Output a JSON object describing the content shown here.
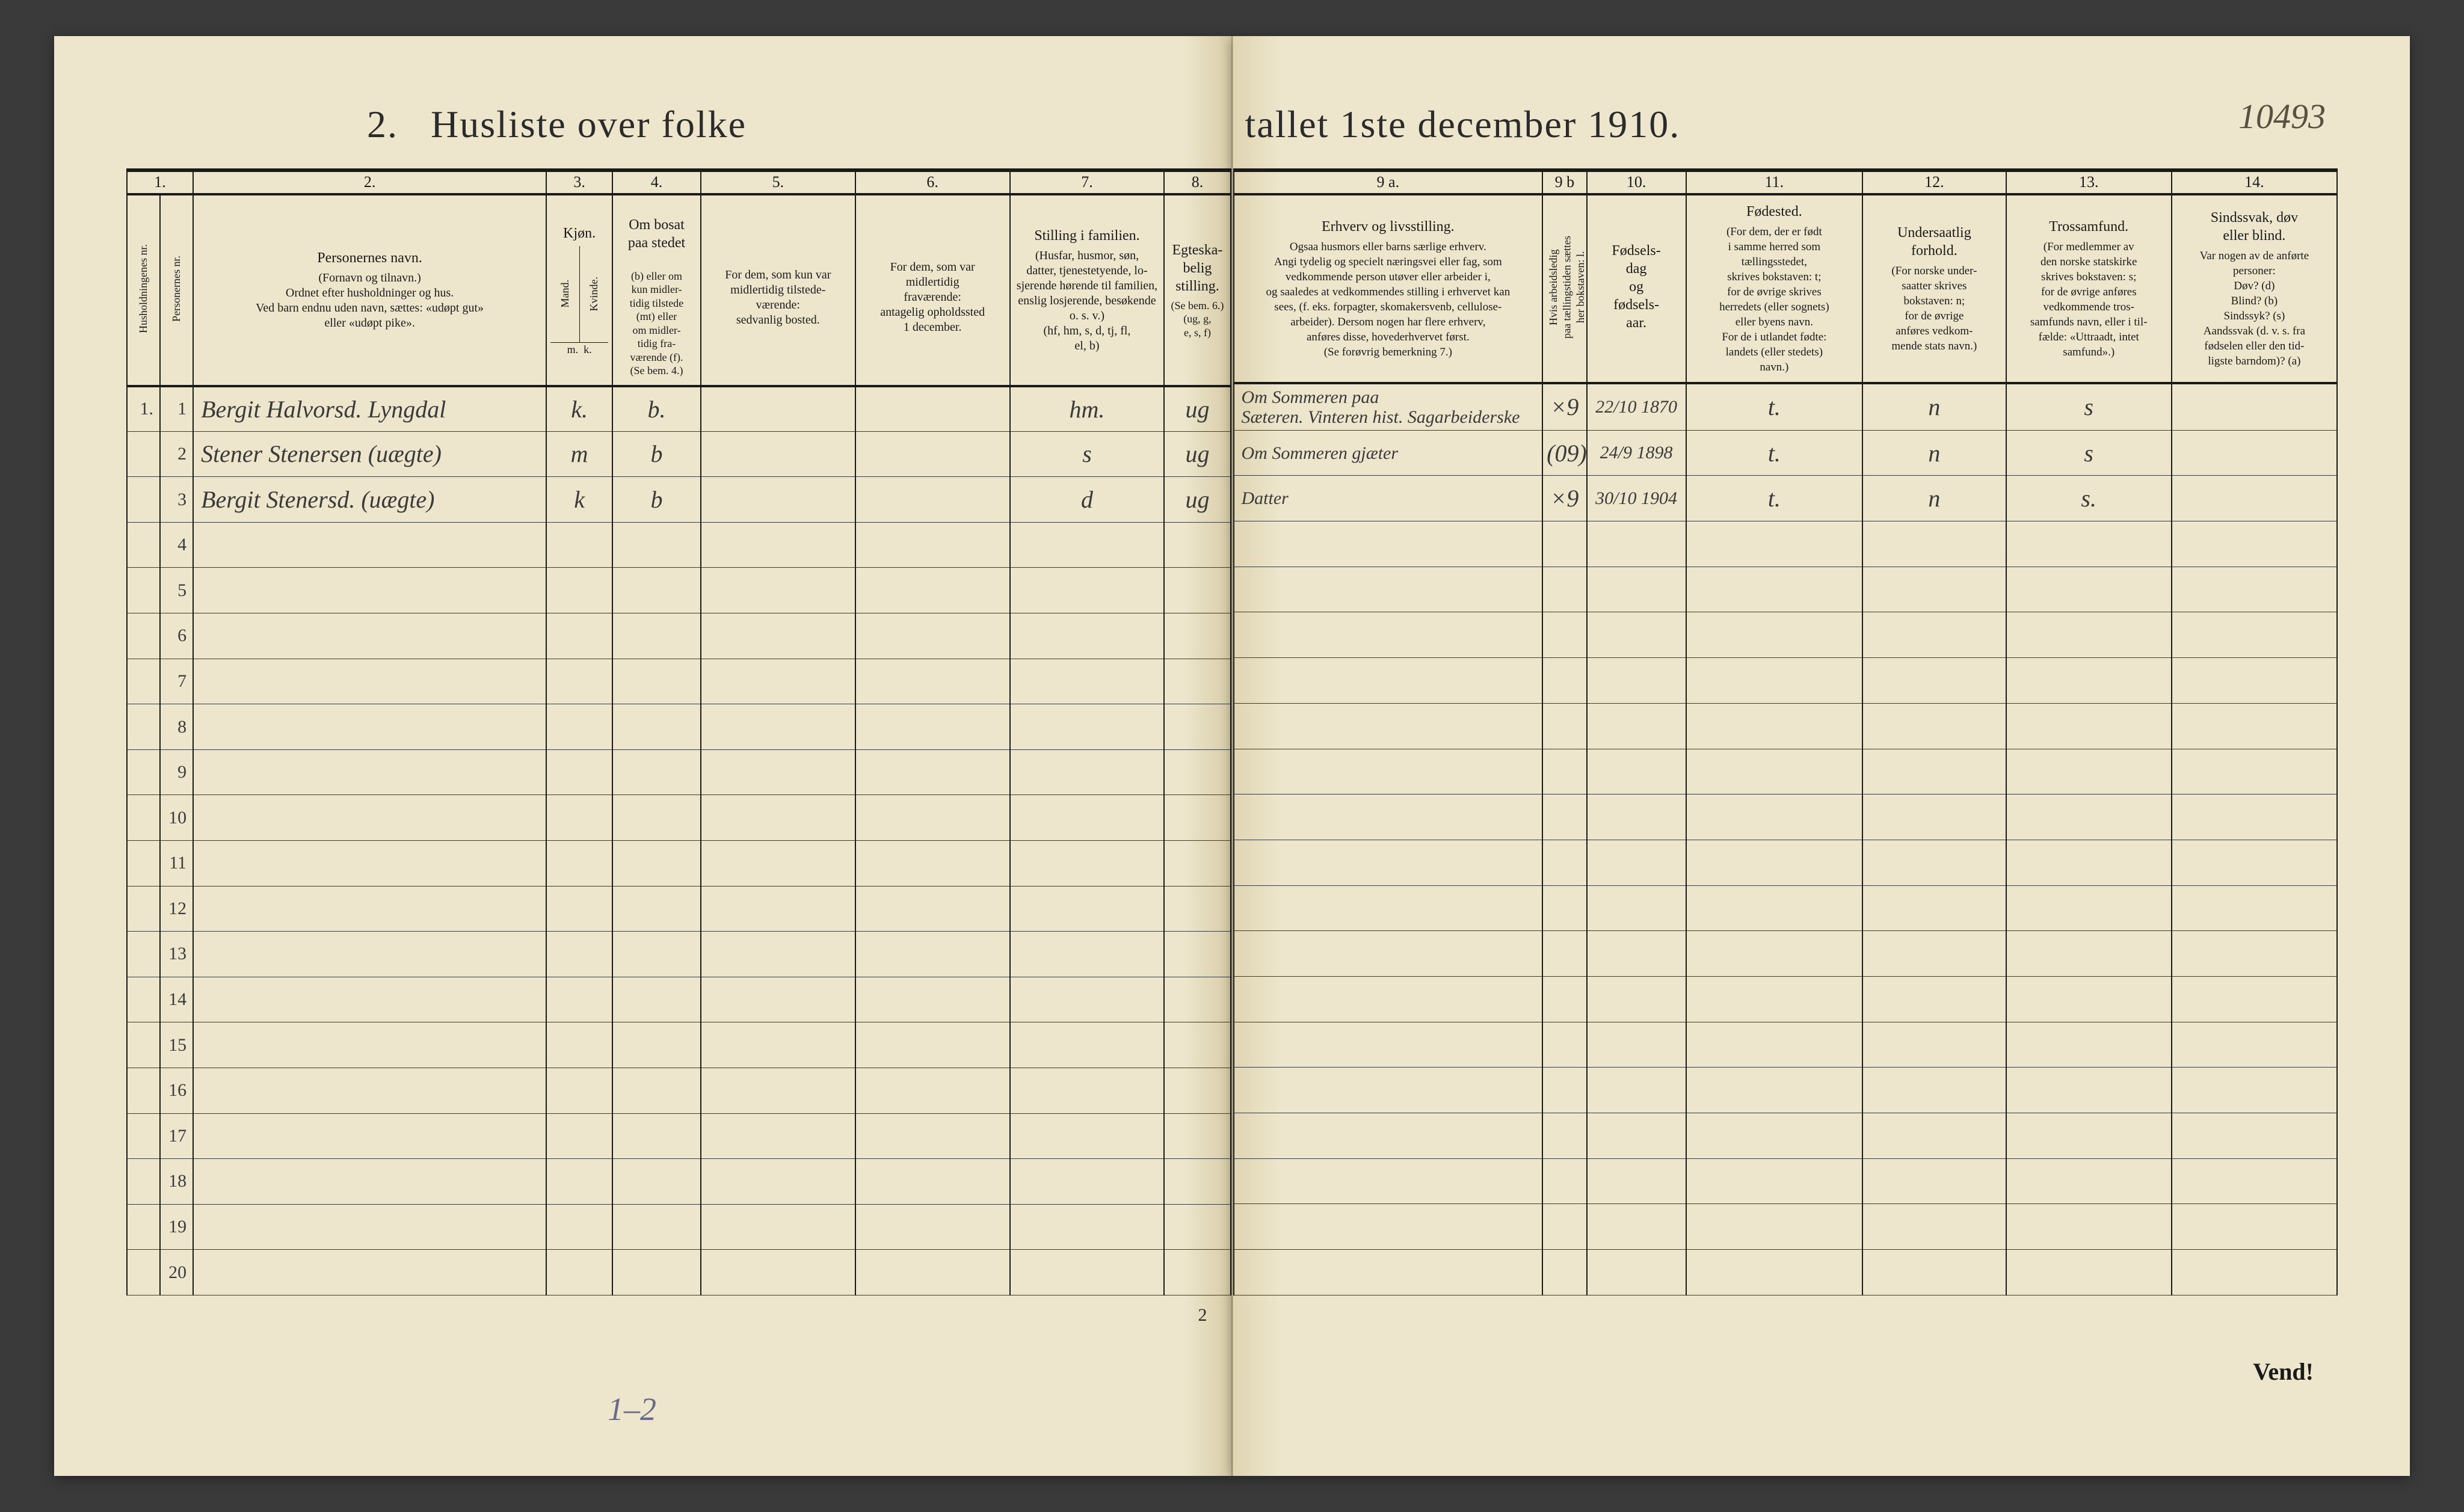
{
  "document": {
    "title_prefix": "2.",
    "title_left": "Husliste over folke",
    "title_right": "tallet 1ste december 1910.",
    "top_right_annotation": "10493",
    "page_number": "2",
    "turn_label": "Vend!",
    "pencil_note": "1–2"
  },
  "colors": {
    "paper": "#ede6cc",
    "ink": "#1a1a1a",
    "handwriting": "#3a3a3a",
    "pencil": "#6a6a8a",
    "background": "#3a3a3a"
  },
  "columns_left": {
    "nums": [
      "1.",
      "",
      "2.",
      "3.",
      "4.",
      "5.",
      "6.",
      "7.",
      "8."
    ],
    "headers": [
      {
        "main": "",
        "sub": "Husholdningenes nr."
      },
      {
        "main": "",
        "sub": "Personernes nr."
      },
      {
        "main": "Personernes navn.",
        "sub": "(Fornavn og tilnavn.)\nOrdnet efter husholdninger og hus.\nVed barn endnu uden navn, sættes: «udøpt gut»\neller «udøpt pike»."
      },
      {
        "main": "Kjøn.",
        "sub": "Mand. / Kvinde.\nm.  k."
      },
      {
        "main": "Om bosat\npaa stedet",
        "sub": "(b) eller om\nkun midler-\ntidig tilstede\n(mt) eller\nom midler-\ntidig fra-\nværende (f).\n(Se bem. 4.)"
      },
      {
        "main": "",
        "sub": "For dem, som kun var\nmidlertidig tilstede-\nværende:\nsedvanlig bosted."
      },
      {
        "main": "",
        "sub": "For dem, som var\nmidlertidig\nfraværende:\nantagelig opholdssted\n1 december."
      },
      {
        "main": "Stilling i familien.",
        "sub": "(Husfar, husmor, søn,\ndatter, tjenestetyende, lo-\nsjerende hørende til familien,\nenslig losjerende, besøkende\no. s. v.)\n(hf, hm, s, d, tj, fl,\nel, b)"
      },
      {
        "main": "Egteska-\nbelig\nstilling.",
        "sub": "(Se bem. 6.)\n(ug, g,\ne, s, f)"
      }
    ]
  },
  "columns_right": {
    "nums": [
      "9 a.",
      "9 b",
      "10.",
      "11.",
      "12.",
      "13.",
      "14."
    ],
    "headers": [
      {
        "main": "Erhverv og livsstilling.",
        "sub": "Ogsaa husmors eller barns særlige erhverv.\nAngi tydelig og specielt næringsvei eller fag, som\nvedkommende person utøver eller arbeider i,\nog saaledes at vedkommendes stilling i erhvervet kan\nsees, (f. eks. forpagter, skomakersvenb, cellulose-\narbeider). Dersom nogen har flere erhverv,\nanføres disse, hovederhvervet først.\n(Se forøvrig bemerkning 7.)"
      },
      {
        "main": "",
        "sub": "Hvis arbeidsledig\npaa tællingstiden sættes\nher bokstaven: l."
      },
      {
        "main": "Fødsels-\ndag\nog\nfødsels-\naar.",
        "sub": ""
      },
      {
        "main": "Fødested.",
        "sub": "(For dem, der er født\ni samme herred som\ntællingsstedet,\nskrives bokstaven: t;\nfor de øvrige skrives\nherredets (eller sognets)\neller byens navn.\nFor de i utlandet fødte:\nlandets (eller stedets)\nnavn.)"
      },
      {
        "main": "Undersaatlig\nforhold.",
        "sub": "(For norske under-\nsaatter skrives\nbokstaven: n;\nfor de øvrige\nanføres vedkom-\nmende stats navn.)"
      },
      {
        "main": "Trossamfund.",
        "sub": "(For medlemmer av\nden norske statskirke\nskrives bokstaven: s;\nfor de øvrige anføres\nvedkommende tros-\nsamfunds navn, eller i til-\nfælde: «Uttraadt, intet\nsamfund».)"
      },
      {
        "main": "Sindssvak, døv\neller blind.",
        "sub": "Var nogen av de anførte\npersoner:\nDøv?        (d)\nBlind?      (b)\nSindssyk?   (s)\nAandssvak (d. v. s. fra\nfødselen eller den tid-\nligste barndom)? (a)"
      }
    ]
  },
  "rows": [
    {
      "household": "1.",
      "person": "1",
      "name": "Bergit Halvorsd. Lyngdal",
      "sex": "k.",
      "resident": "b.",
      "col5": "",
      "col6": "",
      "family_pos": "hm.",
      "marital": "ug",
      "occupation": "Om Sommeren paa\nSæteren. Vinteren hist. Sagarbeiderske",
      "col9b": "×9",
      "birth": "22/10 1870",
      "birthplace": "t.",
      "nationality": "n",
      "faith": "s",
      "col14": ""
    },
    {
      "household": "",
      "person": "2",
      "name": "Stener Stenersen (uægte)",
      "sex": "m",
      "resident": "b",
      "col5": "",
      "col6": "",
      "family_pos": "s",
      "marital": "ug",
      "occupation": "Om Sommeren gjæter",
      "col9b": "(09)",
      "birth": "24/9 1898",
      "birthplace": "t.",
      "nationality": "n",
      "faith": "s",
      "col14": ""
    },
    {
      "household": "",
      "person": "3",
      "name": "Bergit Stenersd. (uægte)",
      "sex": "k",
      "resident": "b",
      "col5": "",
      "col6": "",
      "family_pos": "d",
      "marital": "ug",
      "occupation": "Datter",
      "col9b": "×9",
      "birth": "30/10 1904",
      "birthplace": "t.",
      "nationality": "n",
      "faith": "s.",
      "col14": ""
    }
  ],
  "empty_row_labels": [
    "4",
    "5",
    "6",
    "7",
    "8",
    "9",
    "10",
    "11",
    "12",
    "13",
    "14",
    "15",
    "16",
    "17",
    "18",
    "19",
    "20"
  ],
  "layout": {
    "left_col_widths_pct": [
      3,
      3,
      32,
      6,
      8,
      14,
      14,
      14,
      6
    ],
    "right_col_widths_pct": [
      28,
      4,
      9,
      16,
      13,
      15,
      15
    ]
  }
}
